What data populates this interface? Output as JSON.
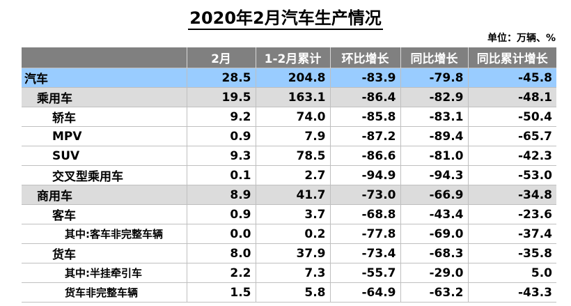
{
  "title": "2020年2月汽车生产情况",
  "unit": "单位：万辆、%",
  "table": {
    "headers": [
      "",
      "2月",
      "1-2月累计",
      "环比增长",
      "同比增长",
      "同比累计增长"
    ],
    "rows": [
      {
        "level": 0,
        "cells": [
          "汽车",
          "28.5",
          "204.8",
          "-83.9",
          "-79.8",
          "-45.8"
        ]
      },
      {
        "level": 1,
        "cells": [
          "乘用车",
          "19.5",
          "163.1",
          "-86.4",
          "-82.9",
          "-48.1"
        ]
      },
      {
        "level": 2,
        "cells": [
          "轿车",
          "9.2",
          "74.0",
          "-85.8",
          "-83.1",
          "-50.4"
        ]
      },
      {
        "level": 2,
        "cells": [
          "MPV",
          "0.9",
          "7.9",
          "-87.2",
          "-89.4",
          "-65.7"
        ]
      },
      {
        "level": 2,
        "cells": [
          "SUV",
          "9.3",
          "78.5",
          "-86.6",
          "-81.0",
          "-42.3"
        ]
      },
      {
        "level": 2,
        "cells": [
          "交叉型乘用车",
          "0.1",
          "2.7",
          "-94.9",
          "-94.3",
          "-53.0"
        ]
      },
      {
        "level": 1,
        "cells": [
          "商用车",
          "8.9",
          "41.7",
          "-73.0",
          "-66.9",
          "-34.8"
        ]
      },
      {
        "level": 2,
        "cells": [
          "客车",
          "0.9",
          "3.7",
          "-68.8",
          "-43.4",
          "-23.6"
        ]
      },
      {
        "level": 3,
        "cells": [
          "其中:客车非完整车辆",
          "0.0",
          "0.2",
          "-77.8",
          "-69.0",
          "-37.4"
        ]
      },
      {
        "level": 2,
        "cells": [
          "货车",
          "8.0",
          "37.9",
          "-73.4",
          "-68.3",
          "-35.8"
        ]
      },
      {
        "level": 3,
        "cells": [
          "其中:半挂牵引车",
          "2.2",
          "7.3",
          "-55.7",
          "-29.0",
          "5.0"
        ]
      },
      {
        "level": 3,
        "cells": [
          "货车非完整车辆",
          "1.5",
          "5.8",
          "-64.9",
          "-63.2",
          "-43.3"
        ]
      }
    ]
  }
}
